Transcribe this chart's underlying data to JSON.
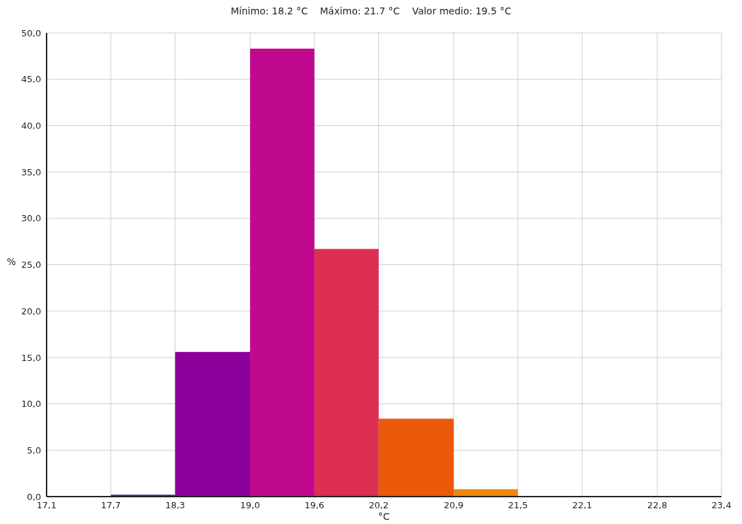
{
  "chart_data": {
    "type": "histogram",
    "title": "Mínimo: 18.2 °C    Máximo: 21.7 °C    Valor medio: 19.5 °C",
    "xlabel": "°C",
    "ylabel": "%",
    "bins": [
      17.7,
      18.3,
      19.0,
      19.6,
      20.2,
      20.9,
      21.5
    ],
    "values": [
      0.2,
      15.6,
      48.3,
      26.7,
      8.4,
      0.8
    ],
    "colors": [
      "#4a1a8c",
      "#8b009b",
      "#c0098f",
      "#dc2f52",
      "#ea5a0a",
      "#f0870f"
    ],
    "xlim": [
      17.1,
      23.4
    ],
    "xticks": [
      {
        "value": 17.1,
        "label": "17,1"
      },
      {
        "value": 17.7,
        "label": "17,7"
      },
      {
        "value": 18.3,
        "label": "18,3"
      },
      {
        "value": 19.0,
        "label": "19,0"
      },
      {
        "value": 19.6,
        "label": "19,6"
      },
      {
        "value": 20.2,
        "label": "20,2"
      },
      {
        "value": 20.9,
        "label": "20,9"
      },
      {
        "value": 21.5,
        "label": "21,5"
      },
      {
        "value": 22.1,
        "label": "22,1"
      },
      {
        "value": 22.8,
        "label": "22,8"
      },
      {
        "value": 23.4,
        "label": "23,4"
      }
    ],
    "ylim": [
      0,
      50
    ],
    "yticks": [
      {
        "value": 0,
        "label": "0,0"
      },
      {
        "value": 5,
        "label": "5,0"
      },
      {
        "value": 10,
        "label": "10,0"
      },
      {
        "value": 15,
        "label": "15,0"
      },
      {
        "value": 20,
        "label": "20,0"
      },
      {
        "value": 25,
        "label": "25,0"
      },
      {
        "value": 30,
        "label": "30,0"
      },
      {
        "value": 35,
        "label": "35,0"
      },
      {
        "value": 40,
        "label": "40,0"
      },
      {
        "value": 45,
        "label": "45,0"
      },
      {
        "value": 50,
        "label": "50,0"
      }
    ],
    "grid": true
  }
}
